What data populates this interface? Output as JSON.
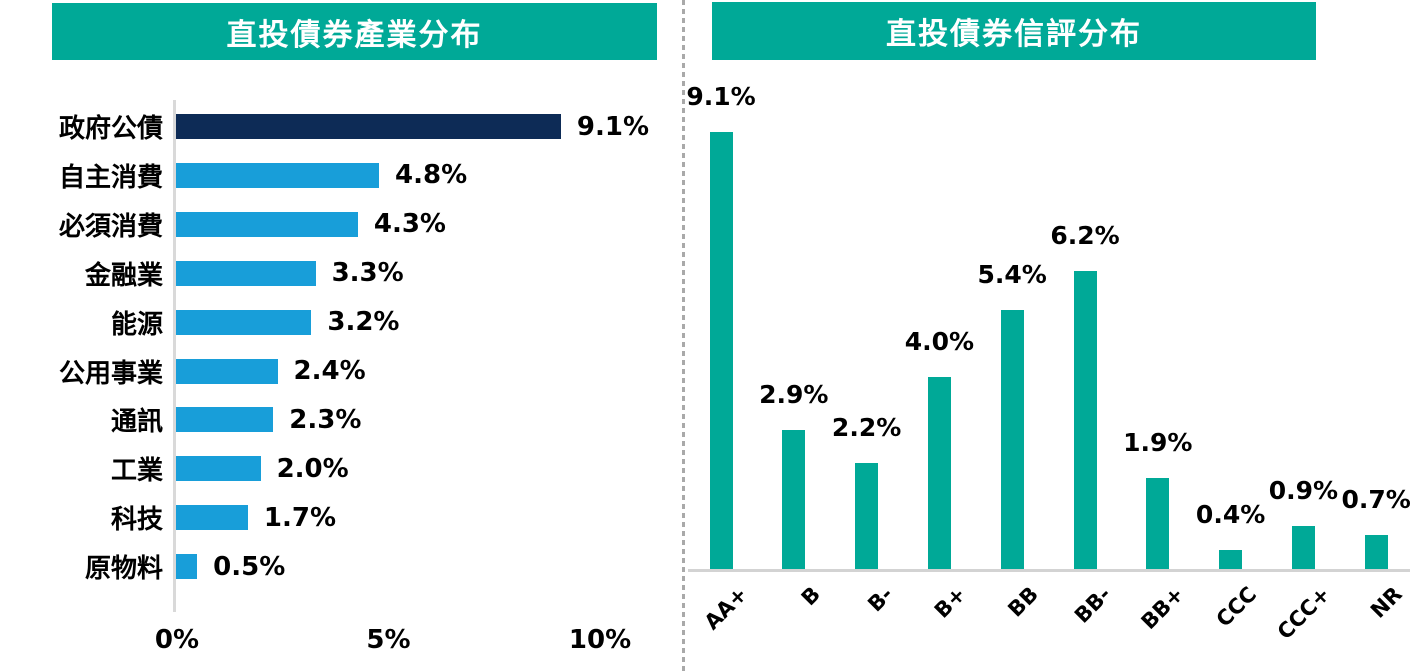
{
  "page": {
    "background": "#FFFFFF"
  },
  "colors": {
    "header_teal": "#00A997",
    "navy_bar": "#0D2B56",
    "light_blue_bar": "#189ED9",
    "teal_bar": "#00A997",
    "axis_line_gray": "#D9D9D9",
    "baseline_gray": "#D3D3D3",
    "separator_gray": "#A9A9A9",
    "label_text": "#000000",
    "title_text": "#FFFFFF"
  },
  "chart_data": [
    {
      "type": "bar",
      "orientation": "horizontal",
      "title": "直投債券產業分布",
      "categories": [
        "政府公債",
        "自主消費",
        "必須消費",
        "金融業",
        "能源",
        "公用事業",
        "通訊",
        "工業",
        "科技",
        "原物料"
      ],
      "values": [
        9.1,
        4.8,
        4.3,
        3.3,
        3.2,
        2.4,
        2.3,
        2.0,
        1.7,
        0.5
      ],
      "value_labels": [
        "9.1%",
        "4.8%",
        "4.3%",
        "3.3%",
        "3.2%",
        "2.4%",
        "2.3%",
        "2.0%",
        "1.7%",
        "0.5%"
      ],
      "bar_colors": [
        "#0D2B56",
        "#189ED9",
        "#189ED9",
        "#189ED9",
        "#189ED9",
        "#189ED9",
        "#189ED9",
        "#189ED9",
        "#189ED9",
        "#189ED9"
      ],
      "x_ticks": [
        {
          "label": "0%",
          "value": 0
        },
        {
          "label": "5%",
          "value": 5
        },
        {
          "label": "10%",
          "value": 10
        }
      ],
      "xlim": [
        0,
        10
      ],
      "grid": false,
      "legend": null
    },
    {
      "type": "bar",
      "orientation": "vertical",
      "title": "直投債券信評分布",
      "categories": [
        "AA+",
        "B",
        "B-",
        "B+",
        "BB",
        "BB-",
        "BB+",
        "CCC",
        "CCC+",
        "NR"
      ],
      "values": [
        9.1,
        2.9,
        2.2,
        4.0,
        5.4,
        6.2,
        1.9,
        0.4,
        0.9,
        0.7
      ],
      "value_labels": [
        "9.1%",
        "2.9%",
        "2.2%",
        "4.0%",
        "5.4%",
        "6.2%",
        "1.9%",
        "0.4%",
        "0.9%",
        "0.7%"
      ],
      "bar_color": "#00A997",
      "ylim": [
        0,
        10
      ],
      "tick_rotation_deg": -45,
      "grid": false,
      "legend": null
    }
  ]
}
